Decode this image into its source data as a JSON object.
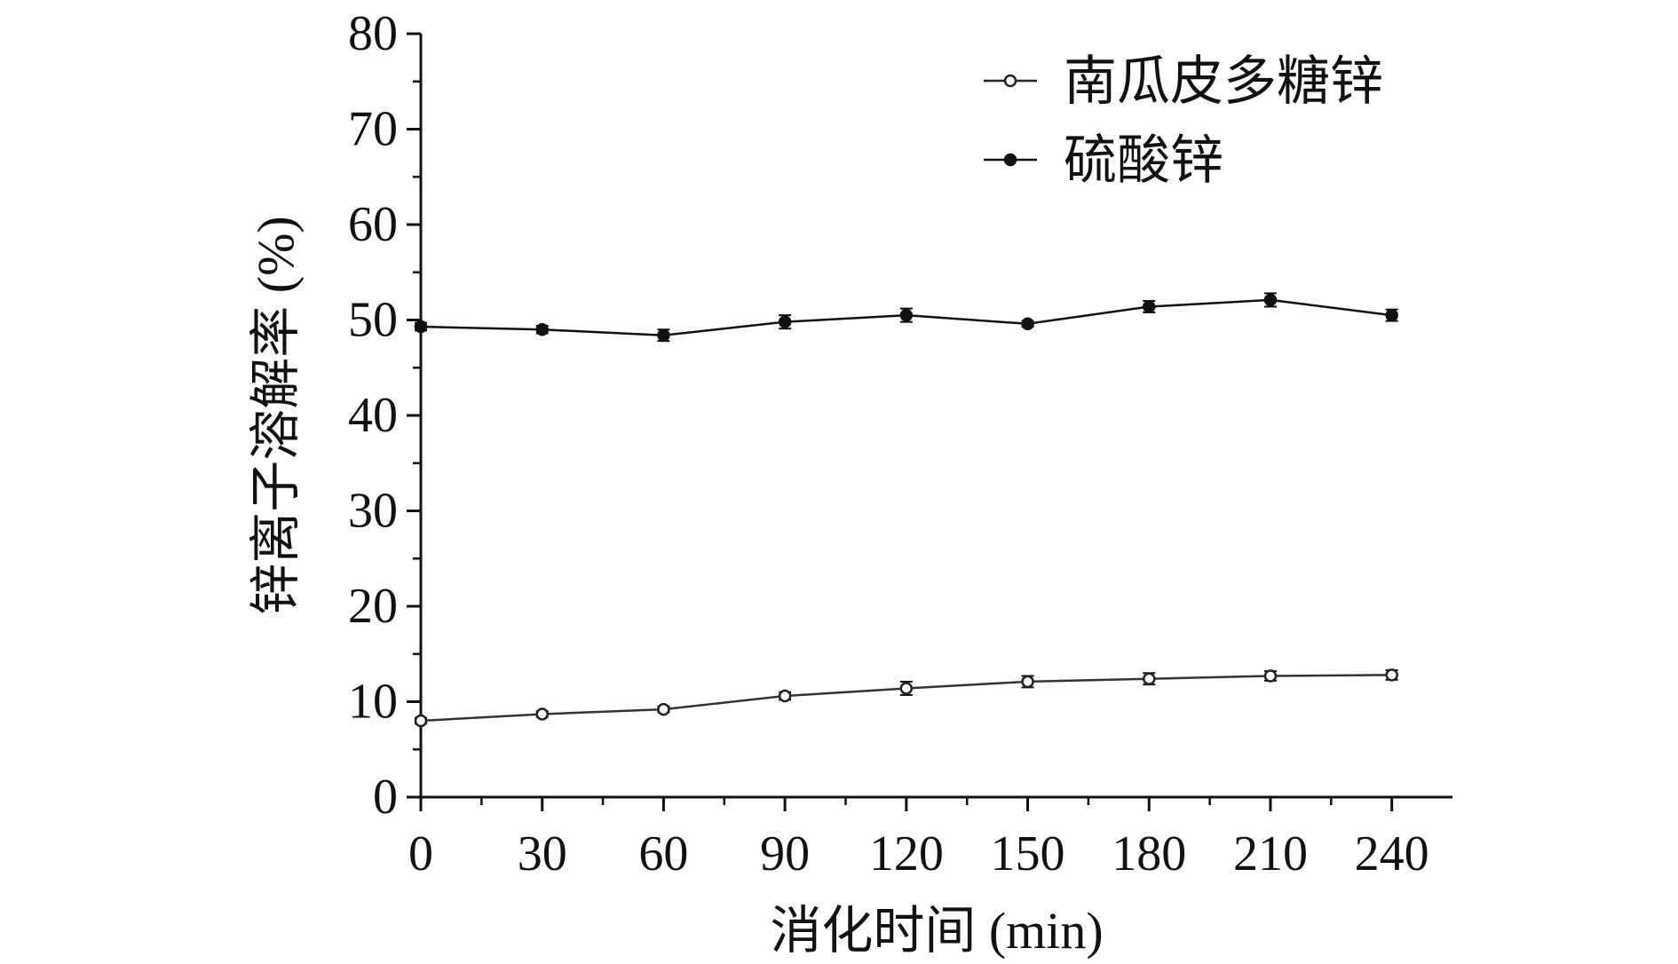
{
  "chart_data": {
    "type": "line",
    "xlabel": "消化时间 (min)",
    "ylabel": "锌离子溶解率 (%)",
    "x": [
      0,
      30,
      60,
      90,
      120,
      150,
      180,
      210,
      240
    ],
    "xlim": [
      0,
      255
    ],
    "ylim": [
      0,
      80
    ],
    "x_ticks": [
      0,
      30,
      60,
      90,
      120,
      150,
      180,
      210,
      240
    ],
    "y_ticks": [
      0,
      10,
      20,
      30,
      40,
      50,
      60,
      70,
      80
    ],
    "grid": false,
    "legend_position": "top-right",
    "series": [
      {
        "name": "南瓜皮多糖锌",
        "marker": "open-circle",
        "values": [
          8.0,
          8.7,
          9.2,
          10.6,
          11.4,
          12.1,
          12.4,
          12.7,
          12.8
        ],
        "errors": [
          0.3,
          0.3,
          0.3,
          0.4,
          0.7,
          0.6,
          0.6,
          0.5,
          0.5
        ]
      },
      {
        "name": "硫酸锌",
        "marker": "filled-circle",
        "values": [
          49.3,
          49.0,
          48.4,
          49.8,
          50.5,
          49.6,
          51.4,
          52.1,
          50.5
        ],
        "errors": [
          0.4,
          0.4,
          0.6,
          0.7,
          0.7,
          0.3,
          0.6,
          0.7,
          0.6
        ]
      }
    ]
  }
}
